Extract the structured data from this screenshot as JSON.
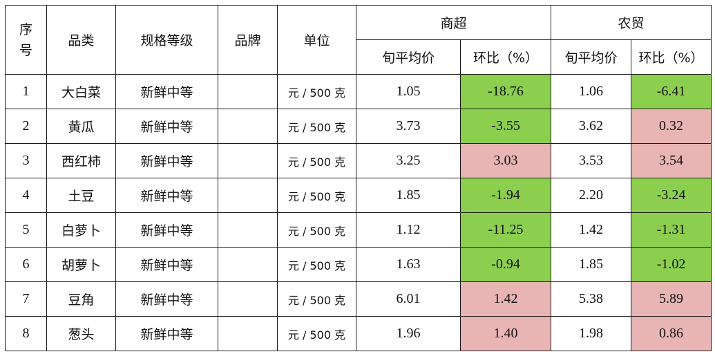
{
  "headers": {
    "seq": "序\n号",
    "seq_line1": "序",
    "seq_line2": "号",
    "category": "品类",
    "spec": "规格等级",
    "brand": "品牌",
    "unit": "单位",
    "supermarket": "商超",
    "market": "农贸",
    "avg_price": "旬平均价",
    "mom": "环比（%）"
  },
  "rows": [
    {
      "seq": "1",
      "category": "大白菜",
      "spec": "新鲜中等",
      "brand": "",
      "unit": "元 / 500 克",
      "s_price": "1.05",
      "s_mom": "-18.76",
      "m_price": "1.06",
      "m_mom": "-6.41"
    },
    {
      "seq": "2",
      "category": "黄瓜",
      "spec": "新鲜中等",
      "brand": "",
      "unit": "元 / 500 克",
      "s_price": "3.73",
      "s_mom": "-3.55",
      "m_price": "3.62",
      "m_mom": "0.32"
    },
    {
      "seq": "3",
      "category": "西红柿",
      "spec": "新鲜中等",
      "brand": "",
      "unit": "元 / 500 克",
      "s_price": "3.25",
      "s_mom": "3.03",
      "m_price": "3.53",
      "m_mom": "3.54"
    },
    {
      "seq": "4",
      "category": "土豆",
      "spec": "新鲜中等",
      "brand": "",
      "unit": "元 / 500 克",
      "s_price": "1.85",
      "s_mom": "-1.94",
      "m_price": "2.20",
      "m_mom": "-3.24"
    },
    {
      "seq": "5",
      "category": "白萝卜",
      "spec": "新鲜中等",
      "brand": "",
      "unit": "元 / 500 克",
      "s_price": "1.12",
      "s_mom": "-11.25",
      "m_price": "1.42",
      "m_mom": "-1.31"
    },
    {
      "seq": "6",
      "category": "胡萝卜",
      "spec": "新鲜中等",
      "brand": "",
      "unit": "元 / 500 克",
      "s_price": "1.63",
      "s_mom": "-0.94",
      "m_price": "1.85",
      "m_mom": "-1.02"
    },
    {
      "seq": "7",
      "category": "豆角",
      "spec": "新鲜中等",
      "brand": "",
      "unit": "元 / 500 克",
      "s_price": "6.01",
      "s_mom": "1.42",
      "m_price": "5.38",
      "m_mom": "5.89"
    },
    {
      "seq": "8",
      "category": "葱头",
      "spec": "新鲜中等",
      "brand": "",
      "unit": "元 / 500 克",
      "s_price": "1.96",
      "s_mom": "1.40",
      "m_price": "1.98",
      "m_mom": "0.86"
    }
  ],
  "colors": {
    "decrease": "#8ccf4e",
    "increase": "#e8b4b4"
  }
}
